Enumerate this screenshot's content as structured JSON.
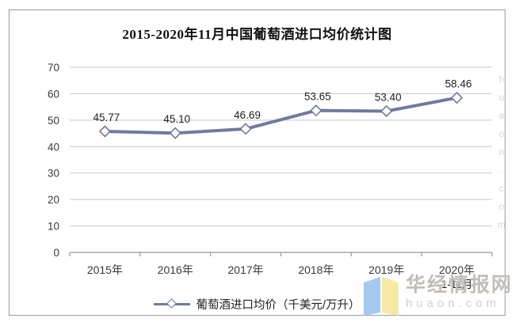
{
  "chart_data": {
    "type": "line",
    "title": "2015-2020年11月中国葡萄酒进口均价统计图",
    "categories": [
      "2015年",
      "2016年",
      "2017年",
      "2018年",
      "2019年",
      "2020年"
    ],
    "sub_label": {
      "index": 5,
      "text": "1-11月"
    },
    "series": [
      {
        "name": "葡萄酒进口均价（千美元/万升）",
        "values": [
          45.77,
          45.1,
          46.69,
          53.65,
          53.4,
          58.46
        ],
        "data_labels": [
          "45.77",
          "45.10",
          "46.69",
          "53.65",
          "53.40",
          "58.46"
        ]
      }
    ],
    "ylim": [
      0,
      70
    ],
    "yticks": [
      0,
      10,
      20,
      30,
      40,
      50,
      60,
      70
    ],
    "grid": true,
    "legend_position": "bottom",
    "line_color": "#6e7b9f",
    "marker": "diamond-white",
    "grid_color": "#c9c9c9",
    "axis_color": "#999999",
    "tick_label_color": "#3a3a3a",
    "data_label_color": "#1f1f1f"
  },
  "watermark": {
    "brand": "华经情报网",
    "domain": "huaon.com",
    "vertical": "huaon.com",
    "logo_colors": {
      "left": "#a5c8ef",
      "right": "#f6e9a4"
    }
  }
}
